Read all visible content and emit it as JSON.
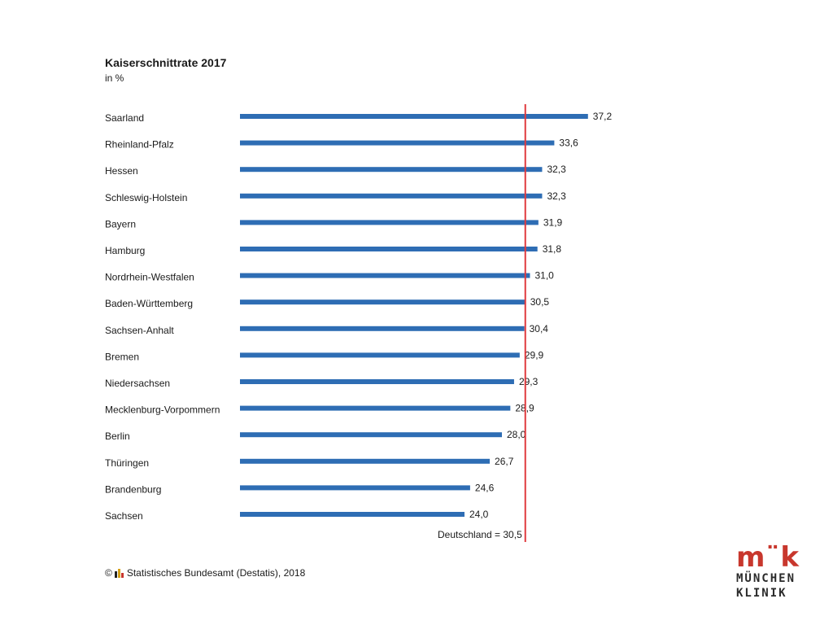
{
  "chart_data": {
    "type": "bar",
    "orientation": "horizontal",
    "title": "Kaiserschnittrate 2017",
    "subtitle": "in %",
    "categories": [
      "Saarland",
      "Rheinland-Pfalz",
      "Hessen",
      "Schleswig-Holstein",
      "Bayern",
      "Hamburg",
      "Nordrhein-Westfalen",
      "Baden-Württemberg",
      "Sachsen-Anhalt",
      "Bremen",
      "Niedersachsen",
      "Mecklenburg-Vorpommern",
      "Berlin",
      "Thüringen",
      "Brandenburg",
      "Sachsen"
    ],
    "values": [
      37.2,
      33.6,
      32.3,
      32.3,
      31.9,
      31.8,
      31.0,
      30.5,
      30.4,
      29.9,
      29.3,
      28.9,
      28.0,
      26.7,
      24.6,
      24.0
    ],
    "value_labels": [
      "37,2",
      "33,6",
      "32,3",
      "32,3",
      "31,9",
      "31,8",
      "31,0",
      "30,5",
      "30,4",
      "29,9",
      "29,3",
      "28,9",
      "28,0",
      "26,7",
      "24,6",
      "24,0"
    ],
    "reference_line": {
      "value": 30.5,
      "label": "Deutschland = 30,5",
      "color": "#e03a3e"
    },
    "bar_color": "#2e6db4",
    "grid": false,
    "legend": "none"
  },
  "source": {
    "text": "Statistisches Bundesamt (Destatis), 2018",
    "copyright": "©"
  },
  "logo": {
    "mark": "m¨k",
    "line1": "MÜNCHEN",
    "line2": "KLINIK"
  }
}
